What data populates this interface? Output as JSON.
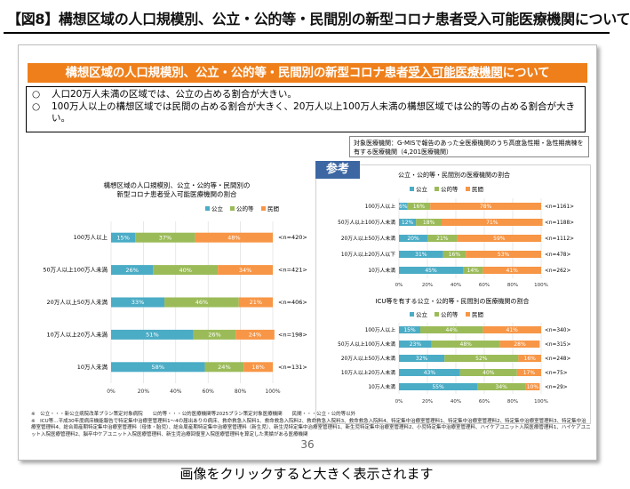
{
  "header": {
    "title": "【図8】構想区域の人口規模別、公立・公的等・民間別の新型コロナ患者受入可能医療機関について"
  },
  "slide": {
    "banner_prefix": "構想区域の人口規模別、公立・公的等・民間別の新型コロナ患者",
    "banner_underlined": "受入可能医療機関",
    "banner_suffix": "について",
    "summary": [
      {
        "mark": "○",
        "text": "人口20万人未満の区域では、公立の占める割合が大きい。"
      },
      {
        "mark": "○",
        "text": "100万人以上の構想区域では民間の占める割合が大きく、20万人以上100万人未満の構想区域では公的等の占める割合が大きい。"
      }
    ],
    "target_note": "対象医療機関：G-MISで報告のあった全医療機関のうち高度急性期・急性期病棟を有する医療機関（4,201医療機関）",
    "sanko_label": "参考",
    "footnote": "※　公立・・・新公立病院改革プラン策定対象病院　　公的等・・・公的医療機関等2025プラン策定対象医療機関　　民間・・・公立・公的等以外\n※　ICU等…平成30年度病床機能報告で特定集中治療室管理料1～4の届出ありの病床、救命救急入院料1、救命救急入院料2、救命救急入院料3、救命救急入院料4、特定集中治療室管理料1、特定集中治療室管理料2、特定集中治療室管理料3、特定集中治療室管理料4、総合周産期特定集中治療室管理料（母体・胎児）、総合周産期特定集中治療室管理料（新生児）、新生児特定集中治療室管理料1、新生児特定集中治療室管理料2、小児特定集中治療室管理料、ハイケアユニット入院医療管理料1、ハイケアユニット入院医療管理料2、脳卒中ケアユニット入院医療管理料、新生児治療回復室入院医療管理料を算定した実績がある医療機関",
    "page_number": "36"
  },
  "caption": "画像をクリックすると大きく表示されます",
  "colors": {
    "kouritsu": "#4bacc6",
    "koteki": "#9bbb59",
    "minkan": "#f79646"
  },
  "chart_data": [
    {
      "type": "bar",
      "stacked": "percent",
      "orientation": "horizontal",
      "title": "構想区域の人口規模別、公立・公的等・民間別の新型コロナ患者受入可能医療機関の割合",
      "title_lines": [
        "構想区域の人口規模別、公立・公的等・民間別の",
        "新型コロナ患者受入可能医療機関の割合"
      ],
      "categories": [
        "100万人以上",
        "50万人以上100万人未満",
        "20万人以上50万人未満",
        "10万人以上20万人未満",
        "10万人未満"
      ],
      "series": [
        {
          "name": "公立",
          "values": [
            15,
            26,
            33,
            51,
            58
          ]
        },
        {
          "name": "公的等",
          "values": [
            37,
            40,
            46,
            26,
            24
          ]
        },
        {
          "name": "民間",
          "values": [
            48,
            34,
            21,
            24,
            18
          ]
        }
      ],
      "n_labels": [
        "<n=420>",
        "<n=421>",
        "<n=406>",
        "<n=198>",
        "<n=131>"
      ],
      "xticks": [
        "0%",
        "20%",
        "40%",
        "60%",
        "80%",
        "100%"
      ],
      "xlim": [
        0,
        100
      ],
      "legend": "top"
    },
    {
      "type": "bar",
      "stacked": "percent",
      "orientation": "horizontal",
      "title": "公立・公的等・民間別の医療機関の割合",
      "categories": [
        "100万人以上",
        "50万人以上100万人未満",
        "20万人以上50万人未満",
        "10万人以上20万人以下",
        "10万人未満"
      ],
      "series": [
        {
          "name": "公立",
          "values": [
            6,
            12,
            20,
            31,
            45
          ]
        },
        {
          "name": "公的等",
          "values": [
            16,
            18,
            21,
            16,
            14
          ]
        },
        {
          "name": "民間",
          "values": [
            78,
            71,
            59,
            53,
            41
          ]
        }
      ],
      "n_labels": [
        "<n=1161>",
        "<n=1188>",
        "<n=1112>",
        "<n=478>",
        "<n=262>"
      ],
      "xticks": [
        "0%",
        "20%",
        "40%",
        "60%",
        "80%",
        "100%"
      ],
      "xlim": [
        0,
        100
      ],
      "legend": "top"
    },
    {
      "type": "bar",
      "stacked": "percent",
      "orientation": "horizontal",
      "title": "ICU等を有する公立・公的等・民間別の医療機関の割合",
      "categories": [
        "100万人以上",
        "50万人以上100万人未満",
        "20万人以上50万人未満",
        "10万人以上20万人未満",
        "10万人未満"
      ],
      "series": [
        {
          "name": "公立",
          "values": [
            15,
            23,
            32,
            43,
            55
          ]
        },
        {
          "name": "公的等",
          "values": [
            44,
            48,
            52,
            40,
            34
          ]
        },
        {
          "name": "民間",
          "values": [
            41,
            28,
            16,
            17,
            10
          ]
        }
      ],
      "n_labels": [
        "<n=340>",
        "<n=315>",
        "<n=248>",
        "<n=75>",
        "<n=29>"
      ],
      "xticks": [
        "0%",
        "20%",
        "40%",
        "60%",
        "80%",
        "100%"
      ],
      "xlim": [
        0,
        100
      ],
      "legend": "top"
    }
  ]
}
